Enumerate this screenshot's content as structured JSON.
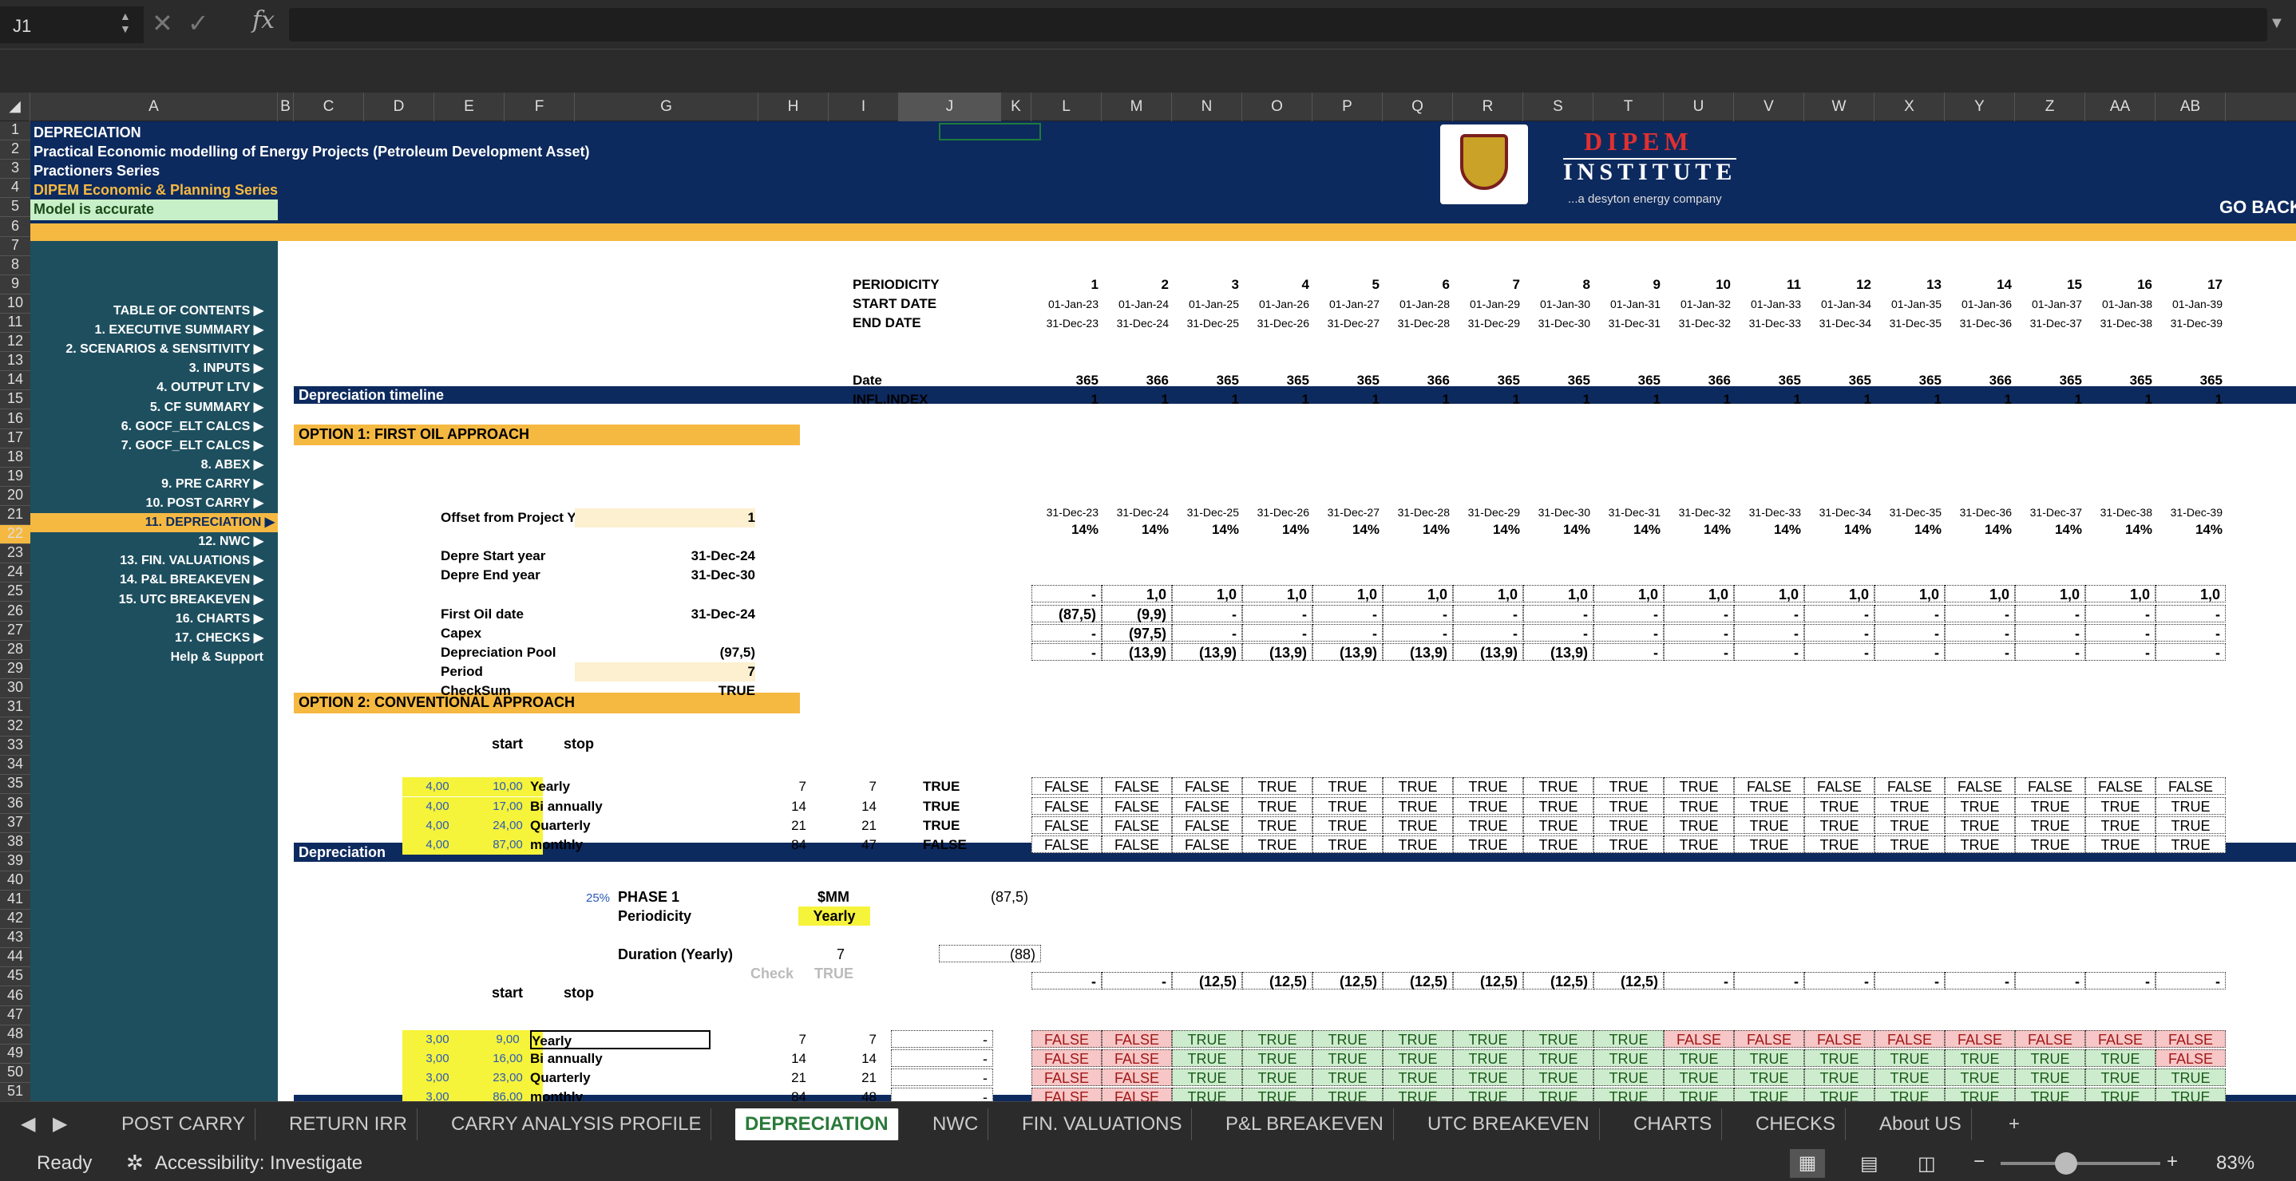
{
  "formula_bar": {
    "name_box": "J1",
    "fx": "fx",
    "content": ""
  },
  "outline_levels": [
    "1",
    "2"
  ],
  "columns": [
    "A",
    "B",
    "C",
    "D",
    "E",
    "F",
    "G",
    "H",
    "I",
    "J",
    "K",
    "L",
    "M",
    "N",
    "O",
    "P",
    "Q",
    "R",
    "S",
    "T",
    "U",
    "V",
    "W",
    "X",
    "Y",
    "Z",
    "AA",
    "AB"
  ],
  "header": {
    "title": "DEPRECIATION",
    "line2": "Practical Economic modelling of Energy Projects (Petroleum Development Asset)",
    "line3": "Practioners Series",
    "line4": "DIPEM Economic & Planning Series",
    "status": "Model is accurate",
    "go_back": "GO BACK",
    "logo_line1": "DIPEM",
    "logo_line2": "INSTITUTE",
    "logo_tagline": "...a desyton energy company"
  },
  "nav": [
    {
      "label": "TABLE OF CONTENTS ▶"
    },
    {
      "label": "1.  EXECUTIVE SUMMARY ▶"
    },
    {
      "label": "2.  SCENARIOS & SENSITIVITY ▶"
    },
    {
      "label": "3.  INPUTS ▶"
    },
    {
      "label": "4.  OUTPUT LTV ▶"
    },
    {
      "label": "5.  CF SUMMARY ▶"
    },
    {
      "label": "6.  GOCF_ELT CALCS ▶"
    },
    {
      "label": "7.  GOCF_ELT CALCS ▶"
    },
    {
      "label": "8.  ABEX ▶"
    },
    {
      "label": "9.  PRE CARRY ▶"
    },
    {
      "label": "10.  POST CARRY ▶"
    },
    {
      "label": "11.  DEPRECIATION ▶"
    },
    {
      "label": "12.  NWC ▶"
    },
    {
      "label": "13.  FIN. VALUATIONS ▶"
    },
    {
      "label": "14.  P&L BREAKEVEN ▶"
    },
    {
      "label": "15.  UTC BREAKEVEN ▶"
    },
    {
      "label": "16.  CHARTS ▶"
    },
    {
      "label": "17.  CHECKS ▶"
    },
    {
      "label": "Help & Support"
    }
  ],
  "timeline": {
    "labels": [
      "PERIODICITY",
      "START DATE",
      "END DATE",
      "Date",
      "INFL.INDEX"
    ],
    "periods": [
      "1",
      "2",
      "3",
      "4",
      "5",
      "6",
      "7",
      "8",
      "9",
      "10",
      "11",
      "12",
      "13",
      "14",
      "15",
      "16",
      "17"
    ],
    "start": [
      "01-Jan-23",
      "01-Jan-24",
      "01-Jan-25",
      "01-Jan-26",
      "01-Jan-27",
      "01-Jan-28",
      "01-Jan-29",
      "01-Jan-30",
      "01-Jan-31",
      "01-Jan-32",
      "01-Jan-33",
      "01-Jan-34",
      "01-Jan-35",
      "01-Jan-36",
      "01-Jan-37",
      "01-Jan-38",
      "01-Jan-39"
    ],
    "end": [
      "31-Dec-23",
      "31-Dec-24",
      "31-Dec-25",
      "31-Dec-26",
      "31-Dec-27",
      "31-Dec-28",
      "31-Dec-29",
      "31-Dec-30",
      "31-Dec-31",
      "31-Dec-32",
      "31-Dec-33",
      "31-Dec-34",
      "31-Dec-35",
      "31-Dec-36",
      "31-Dec-37",
      "31-Dec-38",
      "31-Dec-39"
    ],
    "days": [
      "365",
      "366",
      "365",
      "365",
      "365",
      "366",
      "365",
      "365",
      "365",
      "366",
      "365",
      "365",
      "365",
      "366",
      "365",
      "365",
      "365"
    ],
    "infl": [
      "1",
      "1",
      "1",
      "1",
      "1",
      "1",
      "1",
      "1",
      "1",
      "1",
      "1",
      "1",
      "1",
      "1",
      "1",
      "1",
      "1"
    ]
  },
  "dep_timeline_label": "Depreciation timeline",
  "option1": {
    "title": "OPTION 1: FIRST OIL APPROACH",
    "labels": [
      "Offset from Project Year",
      "Depre Start year",
      "Depre End  year",
      "First Oil date",
      "Capex",
      "Depreciation Pool",
      "Period",
      "CheckSum"
    ],
    "values": [
      "1",
      "31-Dec-24",
      "31-Dec-30",
      "31-Dec-24",
      "",
      "(97,5)",
      "7",
      "TRUE"
    ],
    "rate": "14%",
    "r25": [
      "-",
      "1,0",
      "1,0",
      "1,0",
      "1,0",
      "1,0",
      "1,0",
      "1,0",
      "1,0",
      "1,0",
      "1,0",
      "1,0",
      "1,0",
      "1,0",
      "1,0",
      "1,0",
      "1,0"
    ],
    "r26": [
      "(87,5)",
      "(9,9)",
      "-",
      "-",
      "-",
      "-",
      "-",
      "-",
      "-",
      "-",
      "-",
      "-",
      "-",
      "-",
      "-",
      "-",
      "-"
    ],
    "r27": [
      "-",
      "(97,5)",
      "-",
      "-",
      "-",
      "-",
      "-",
      "-",
      "-",
      "-",
      "-",
      "-",
      "-",
      "-",
      "-",
      "-",
      "-"
    ],
    "r28": [
      "-",
      "(13,9)",
      "(13,9)",
      "(13,9)",
      "(13,9)",
      "(13,9)",
      "(13,9)",
      "(13,9)",
      "-",
      "-",
      "-",
      "-",
      "-",
      "-",
      "-",
      "-",
      "-"
    ]
  },
  "option2": {
    "title": "OPTION 2: CONVENTIONAL APPROACH",
    "start_label": "start",
    "stop_label": "stop",
    "rows": [
      {
        "start": "4,00",
        "stop": "10,00",
        "name": "Yearly",
        "h": "7",
        "i": "7",
        "j": "TRUE",
        "vals": [
          "FALSE",
          "FALSE",
          "FALSE",
          "TRUE",
          "TRUE",
          "TRUE",
          "TRUE",
          "TRUE",
          "TRUE",
          "TRUE",
          "FALSE",
          "FALSE",
          "FALSE",
          "FALSE",
          "FALSE",
          "FALSE",
          "FALSE"
        ]
      },
      {
        "start": "4,00",
        "stop": "17,00",
        "name": "Bi annually",
        "h": "14",
        "i": "14",
        "j": "TRUE",
        "vals": [
          "FALSE",
          "FALSE",
          "FALSE",
          "TRUE",
          "TRUE",
          "TRUE",
          "TRUE",
          "TRUE",
          "TRUE",
          "TRUE",
          "TRUE",
          "TRUE",
          "TRUE",
          "TRUE",
          "TRUE",
          "TRUE",
          "TRUE"
        ]
      },
      {
        "start": "4,00",
        "stop": "24,00",
        "name": "Quarterly",
        "h": "21",
        "i": "21",
        "j": "TRUE",
        "vals": [
          "FALSE",
          "FALSE",
          "FALSE",
          "TRUE",
          "TRUE",
          "TRUE",
          "TRUE",
          "TRUE",
          "TRUE",
          "TRUE",
          "TRUE",
          "TRUE",
          "TRUE",
          "TRUE",
          "TRUE",
          "TRUE",
          "TRUE"
        ]
      },
      {
        "start": "4,00",
        "stop": "87,00",
        "name": "monthly",
        "h": "84",
        "i": "47",
        "j": "FALSE",
        "vals": [
          "FALSE",
          "FALSE",
          "FALSE",
          "TRUE",
          "TRUE",
          "TRUE",
          "TRUE",
          "TRUE",
          "TRUE",
          "TRUE",
          "TRUE",
          "TRUE",
          "TRUE",
          "TRUE",
          "TRUE",
          "TRUE",
          "TRUE"
        ]
      }
    ]
  },
  "depreciation": {
    "title": "Depreciation",
    "pct": "25%",
    "phase": "PHASE 1",
    "unit": "$MM",
    "amount": "(87,5)",
    "periodicity_label": "Periodicity",
    "periodicity": "Yearly",
    "duration_label": "Duration (Yearly)",
    "duration": "7",
    "duration_box": "(88)",
    "check_label": "Check",
    "check_val": "TRUE",
    "r45": [
      "-",
      "-",
      "(12,5)",
      "(12,5)",
      "(12,5)",
      "(12,5)",
      "(12,5)",
      "(12,5)",
      "(12,5)",
      "-",
      "-",
      "-",
      "-",
      "-",
      "-",
      "-",
      "-"
    ],
    "start_label": "start",
    "stop_label": "stop",
    "rows": [
      {
        "start": "3,00",
        "stop": "9,00",
        "name": "Yearly",
        "h": "7",
        "i": "7",
        "j": "-",
        "vals": [
          "FALSE",
          "FALSE",
          "TRUE",
          "TRUE",
          "TRUE",
          "TRUE",
          "TRUE",
          "TRUE",
          "TRUE",
          "FALSE",
          "FALSE",
          "FALSE",
          "FALSE",
          "FALSE",
          "FALSE",
          "FALSE",
          "FALSE"
        ]
      },
      {
        "start": "3,00",
        "stop": "16,00",
        "name": "Bi annually",
        "h": "14",
        "i": "14",
        "j": "-",
        "vals": [
          "FALSE",
          "FALSE",
          "TRUE",
          "TRUE",
          "TRUE",
          "TRUE",
          "TRUE",
          "TRUE",
          "TRUE",
          "TRUE",
          "TRUE",
          "TRUE",
          "TRUE",
          "TRUE",
          "TRUE",
          "TRUE",
          "FALSE"
        ]
      },
      {
        "start": "3,00",
        "stop": "23,00",
        "name": "Quarterly",
        "h": "21",
        "i": "21",
        "j": "-",
        "vals": [
          "FALSE",
          "FALSE",
          "TRUE",
          "TRUE",
          "TRUE",
          "TRUE",
          "TRUE",
          "TRUE",
          "TRUE",
          "TRUE",
          "TRUE",
          "TRUE",
          "TRUE",
          "TRUE",
          "TRUE",
          "TRUE",
          "TRUE"
        ]
      },
      {
        "start": "3,00",
        "stop": "86,00",
        "name": "monthly",
        "h": "84",
        "i": "48",
        "j": "-",
        "vals": [
          "FALSE",
          "FALSE",
          "TRUE",
          "TRUE",
          "TRUE",
          "TRUE",
          "TRUE",
          "TRUE",
          "TRUE",
          "TRUE",
          "TRUE",
          "TRUE",
          "TRUE",
          "TRUE",
          "TRUE",
          "TRUE",
          "TRUE"
        ]
      }
    ]
  },
  "row52_label": "Depreciation",
  "tabs": [
    "POST CARRY",
    "RETURN IRR",
    "CARRY ANALYSIS PROFILE",
    "DEPRECIATION",
    "NWC",
    "FIN. VALUATIONS",
    "P&L BREAKEVEN",
    "UTC BREAKEVEN",
    "CHARTS",
    "CHECKS",
    "About US"
  ],
  "active_tab": "DEPRECIATION",
  "statusbar": {
    "ready": "Ready",
    "accessibility": "Accessibility: Investigate",
    "zoom": "83%"
  },
  "colors": {
    "navy": "#0d2a5e",
    "sidebar": "#1e4f5f",
    "orange": "#f5b942",
    "yellow": "#f6f33b",
    "true_green": "#cdeccd",
    "false_red": "#f7c6c6"
  }
}
